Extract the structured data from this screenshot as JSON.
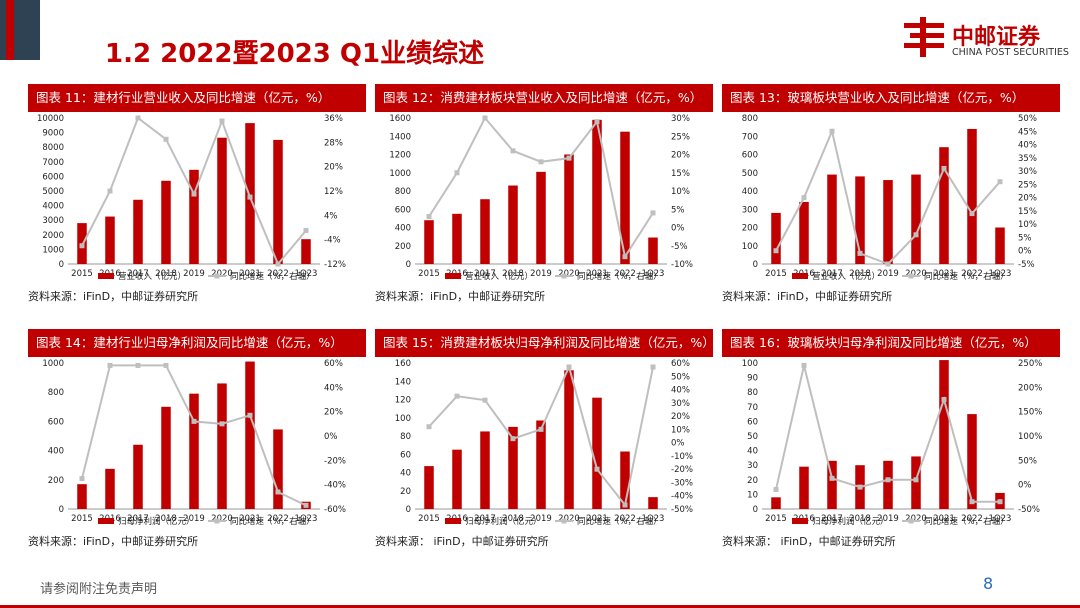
{
  "header": {
    "title": "1.2 2022暨2023 Q1业绩综述",
    "logo_name": "中邮证券",
    "logo_sub": "CHINA POST SECURITIES",
    "brand_color": "#c00000"
  },
  "footer": {
    "note": "请参阅附注免责声明",
    "page_number": "8"
  },
  "chart_data": [
    {
      "id": "c11",
      "type": "bar",
      "title": "图表 11：建材行业营业收入及同比增速（亿元，%）",
      "source": "资料来源：iFinD，中邮证券研究所",
      "categories": [
        "2015",
        "2016",
        "2017",
        "2018",
        "2019",
        "2020",
        "2021",
        "2022",
        "1Q23"
      ],
      "series": [
        {
          "name": "营业收入（亿元）",
          "kind": "bar",
          "axis": "left",
          "color": "#c00000",
          "values": [
            2800,
            3250,
            4400,
            5700,
            6450,
            8650,
            9650,
            8500,
            1700
          ]
        },
        {
          "name": "同比增速（%，右轴）",
          "kind": "line",
          "axis": "right",
          "color": "#bfbfbf",
          "values": [
            -6,
            12,
            36,
            29,
            11,
            35,
            10,
            -12,
            -1
          ]
        }
      ],
      "left_axis": {
        "min": 0,
        "max": 10000,
        "ticks": [
          "0",
          "1000",
          "2000",
          "3000",
          "4000",
          "5000",
          "6000",
          "7000",
          "8000",
          "9000",
          "10000"
        ]
      },
      "right_axis": {
        "min": -12,
        "max": 36,
        "ticks": [
          "-12%",
          "-4%",
          "4%",
          "12%",
          "20%",
          "28%",
          "36%"
        ]
      }
    },
    {
      "id": "c12",
      "type": "bar",
      "title": "图表 12：消费建材板块营业收入及同比增速（亿元，%）",
      "source": "资料来源：iFinD，中邮证券研究所",
      "categories": [
        "2015",
        "2016",
        "2017",
        "2018",
        "2019",
        "2020",
        "2021",
        "2022",
        "1Q23"
      ],
      "series": [
        {
          "name": "营业收入（亿元）",
          "kind": "bar",
          "axis": "left",
          "color": "#c00000",
          "values": [
            480,
            550,
            710,
            860,
            1010,
            1200,
            1580,
            1450,
            290
          ]
        },
        {
          "name": "同比增速（%，右轴）",
          "kind": "line",
          "axis": "right",
          "color": "#bfbfbf",
          "values": [
            3,
            15,
            30,
            21,
            18,
            19,
            29,
            -8,
            4
          ]
        }
      ],
      "left_axis": {
        "min": 0,
        "max": 1600,
        "ticks": [
          "0",
          "200",
          "400",
          "600",
          "800",
          "1000",
          "1200",
          "1400",
          "1600"
        ]
      },
      "right_axis": {
        "min": -10,
        "max": 30,
        "ticks": [
          "-10%",
          "-5%",
          "0%",
          "5%",
          "10%",
          "15%",
          "20%",
          "25%",
          "30%"
        ]
      }
    },
    {
      "id": "c13",
      "type": "bar",
      "title": "图表 13：玻璃板块营业收入及同比增速（亿元，%）",
      "source": "资料来源：iFinD，中邮证券研究所",
      "categories": [
        "2015",
        "2016",
        "2017",
        "2018",
        "2019",
        "2020",
        "2021",
        "2022",
        "1Q23"
      ],
      "series": [
        {
          "name": "营业收入（亿元）",
          "kind": "bar",
          "axis": "left",
          "color": "#c00000",
          "values": [
            280,
            340,
            490,
            480,
            460,
            490,
            640,
            740,
            200
          ]
        },
        {
          "name": "同比增速（%，右轴）",
          "kind": "line",
          "axis": "right",
          "color": "#bfbfbf",
          "values": [
            0,
            20,
            45,
            -1,
            -5,
            6,
            31,
            14,
            26
          ]
        }
      ],
      "left_axis": {
        "min": 0,
        "max": 800,
        "ticks": [
          "0",
          "100",
          "200",
          "300",
          "400",
          "500",
          "600",
          "700",
          "800"
        ]
      },
      "right_axis": {
        "min": -5,
        "max": 50,
        "ticks": [
          "-5%",
          "0%",
          "5%",
          "10%",
          "15%",
          "20%",
          "25%",
          "30%",
          "35%",
          "40%",
          "45%",
          "50%"
        ]
      }
    },
    {
      "id": "c14",
      "type": "bar",
      "title": "图表 14：建材行业归母净利润及同比增速（亿元，%）",
      "source": "资料来源：iFinD，中邮证券研究所",
      "categories": [
        "2015",
        "2016",
        "2017",
        "2018",
        "2019",
        "2020",
        "2021",
        "2022",
        "1Q23"
      ],
      "series": [
        {
          "name": "归母净利润（亿元）",
          "kind": "bar",
          "axis": "left",
          "color": "#c00000",
          "values": [
            170,
            275,
            440,
            700,
            790,
            860,
            1010,
            545,
            50
          ]
        },
        {
          "name": "同比增速（%，右轴）",
          "kind": "line",
          "axis": "right",
          "color": "#bfbfbf",
          "values": [
            -35,
            58,
            58,
            58,
            12,
            10,
            17,
            -46,
            -57
          ]
        }
      ],
      "left_axis": {
        "min": 0,
        "max": 1000,
        "ticks": [
          "0",
          "200",
          "400",
          "600",
          "800",
          "1000"
        ]
      },
      "right_axis": {
        "min": -60,
        "max": 60,
        "ticks": [
          "-60%",
          "-40%",
          "-20%",
          "0%",
          "20%",
          "40%",
          "60%"
        ]
      }
    },
    {
      "id": "c15",
      "type": "bar",
      "title": "图表 15：消费建材板块归母净利润及同比增速（亿元，%）",
      "source": "资料来源：  iFinD，中邮证券研究所",
      "categories": [
        "2015",
        "2016",
        "2017",
        "2018",
        "2019",
        "2020",
        "2021",
        "2022",
        "1Q23"
      ],
      "series": [
        {
          "name": "归母净利润（亿元）",
          "kind": "bar",
          "axis": "left",
          "color": "#c00000",
          "values": [
            47,
            65,
            85,
            90,
            97,
            152,
            122,
            63,
            13
          ]
        },
        {
          "name": "同比增速（%，右轴）",
          "kind": "line",
          "axis": "right",
          "color": "#bfbfbf",
          "values": [
            12,
            35,
            32,
            3,
            10,
            57,
            -20,
            -47,
            57
          ]
        }
      ],
      "left_axis": {
        "min": 0,
        "max": 160,
        "ticks": [
          "0",
          "20",
          "40",
          "60",
          "80",
          "100",
          "120",
          "140",
          "160"
        ]
      },
      "right_axis": {
        "min": -50,
        "max": 60,
        "ticks": [
          "-50%",
          "-40%",
          "-30%",
          "-20%",
          "-10%",
          "0%",
          "10%",
          "20%",
          "30%",
          "40%",
          "50%",
          "60%"
        ]
      }
    },
    {
      "id": "c16",
      "type": "bar",
      "title": "图表 16：玻璃板块归母净利润及同比增速（亿元，%）",
      "source": "资料来源：  iFinD，中邮证券研究所",
      "categories": [
        "2015",
        "2016",
        "2017",
        "2018",
        "2019",
        "2020",
        "2021",
        "2022",
        "1Q23"
      ],
      "series": [
        {
          "name": "归母净利润（亿元）",
          "kind": "bar",
          "axis": "left",
          "color": "#c00000",
          "values": [
            8,
            29,
            33,
            30,
            33,
            36,
            102,
            65,
            11
          ]
        },
        {
          "name": "同比增速（%，右轴）",
          "kind": "line",
          "axis": "right",
          "color": "#bfbfbf",
          "values": [
            -10,
            245,
            13,
            -5,
            10,
            10,
            175,
            -35,
            -35
          ]
        }
      ],
      "left_axis": {
        "min": 0,
        "max": 100,
        "ticks": [
          "0",
          "10",
          "20",
          "30",
          "40",
          "50",
          "60",
          "70",
          "80",
          "90",
          "100"
        ]
      },
      "right_axis": {
        "min": -50,
        "max": 250,
        "ticks": [
          "-50%",
          "0%",
          "50%",
          "100%",
          "150%",
          "200%",
          "250%"
        ]
      }
    }
  ]
}
